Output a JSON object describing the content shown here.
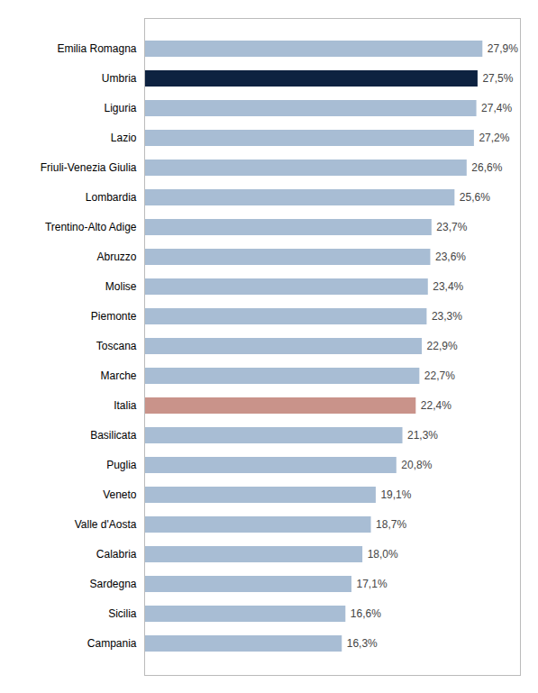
{
  "chart_data": {
    "type": "bar",
    "orientation": "horizontal",
    "categories": [
      "Emilia Romagna",
      "Umbria",
      "Liguria",
      "Lazio",
      "Friuli-Venezia Giulia",
      "Lombardia",
      "Trentino-Alto Adige",
      "Abruzzo",
      "Molise",
      "Piemonte",
      "Toscana",
      "Marche",
      "Italia",
      "Basilicata",
      "Puglia",
      "Veneto",
      "Valle d'Aosta",
      "Calabria",
      "Sardegna",
      "Sicilia",
      "Campania"
    ],
    "values": [
      27.9,
      27.5,
      27.4,
      27.2,
      26.6,
      25.6,
      23.7,
      23.6,
      23.4,
      23.3,
      22.9,
      22.7,
      22.4,
      21.3,
      20.8,
      19.1,
      18.7,
      18.0,
      17.1,
      16.6,
      16.3
    ],
    "value_labels": [
      "27,9%",
      "27,5%",
      "27,4%",
      "27,2%",
      "26,6%",
      "25,6%",
      "23,7%",
      "23,6%",
      "23,4%",
      "23,3%",
      "22,9%",
      "22,7%",
      "22,4%",
      "21,3%",
      "20,8%",
      "19,1%",
      "18,7%",
      "18,0%",
      "17,1%",
      "16,6%",
      "16,3%"
    ],
    "colors": [
      "#a8bdd4",
      "#0d2240",
      "#a8bdd4",
      "#a8bdd4",
      "#a8bdd4",
      "#a8bdd4",
      "#a8bdd4",
      "#a8bdd4",
      "#a8bdd4",
      "#a8bdd4",
      "#a8bdd4",
      "#a8bdd4",
      "#c9938a",
      "#a8bdd4",
      "#a8bdd4",
      "#a8bdd4",
      "#a8bdd4",
      "#a8bdd4",
      "#a8bdd4",
      "#a8bdd4",
      "#a8bdd4"
    ],
    "xlim": [
      0,
      31
    ],
    "data_labels": true,
    "tick_labels": "y"
  }
}
